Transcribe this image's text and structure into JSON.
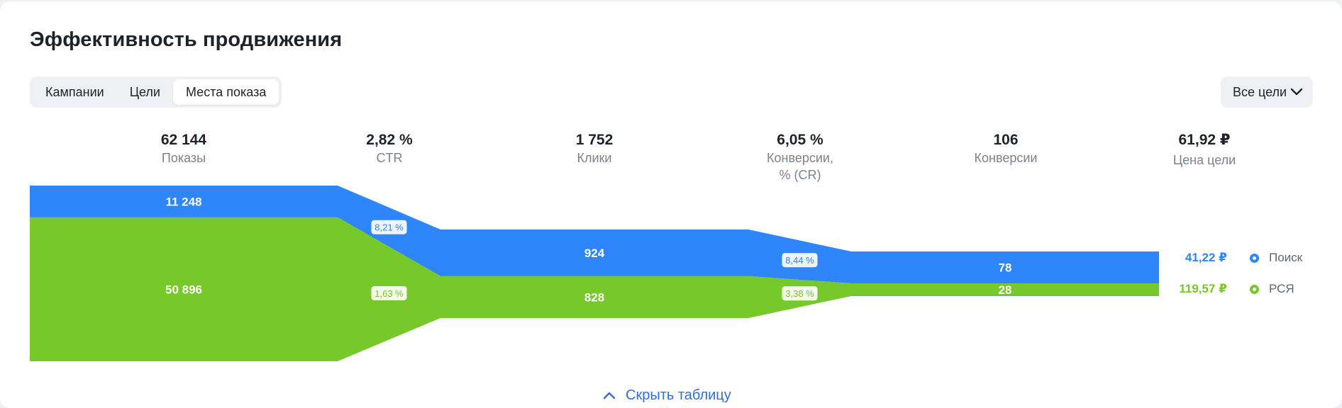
{
  "title": "Эффективность продвижения",
  "tabs": [
    {
      "label": "Кампании",
      "active": false
    },
    {
      "label": "Цели",
      "active": false
    },
    {
      "label": "Места показа",
      "active": true
    }
  ],
  "goals_select": {
    "label": "Все цели",
    "icon": "chevron-down-icon"
  },
  "metrics": [
    {
      "value": "62 144",
      "label": "Показы",
      "label2": ""
    },
    {
      "value": "2,82 %",
      "label": "CTR",
      "label2": ""
    },
    {
      "value": "1 752",
      "label": "Клики",
      "label2": ""
    },
    {
      "value": "6,05 %",
      "label": "Конверсии,",
      "label2": "% (CR)"
    },
    {
      "value": "106",
      "label": "Конверсии",
      "label2": ""
    },
    {
      "value": "61,92 ₽",
      "label": "Цена цели",
      "label2": ""
    }
  ],
  "chart_data": {
    "type": "funnel",
    "stages": [
      "Показы",
      "Клики",
      "Конверсии"
    ],
    "transitions": [
      "CTR",
      "Конверсии, % (CR)"
    ],
    "series": [
      {
        "name": "Поиск",
        "color": "#2f86fa",
        "values": [
          11248,
          924,
          78
        ],
        "value_labels": [
          "11 248",
          "924",
          "78"
        ],
        "rates": [
          "8,21 %",
          "8,44 %"
        ],
        "goal_price": "41,22 ₽"
      },
      {
        "name": "РСЯ",
        "color": "#77c82a",
        "values": [
          50896,
          828,
          28
        ],
        "value_labels": [
          "50 896",
          "828",
          "28"
        ],
        "rates": [
          "1,63 %",
          "3,38 %"
        ],
        "goal_price": "119,57 ₽"
      }
    ]
  },
  "hide_table": {
    "label": "Скрыть таблицу",
    "icon": "chevron-up-icon"
  }
}
